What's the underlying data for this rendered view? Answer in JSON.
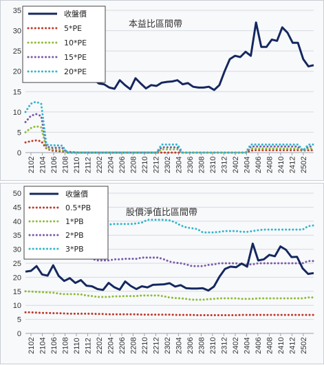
{
  "chart_data": [
    {
      "type": "line",
      "title": "本益比區間帶",
      "ylim": [
        0,
        35
      ],
      "yticks": [
        0,
        5,
        10,
        15,
        20,
        25,
        30,
        35
      ],
      "xtick_labels": [
        "2102",
        "2104",
        "2106",
        "2108",
        "2110",
        "2112",
        "2202",
        "2204",
        "2206",
        "2208",
        "2210",
        "2212",
        "2302",
        "2304",
        "2306",
        "2308",
        "2310",
        "2312",
        "2402",
        "2404",
        "2406",
        "2408",
        "2410",
        "2412",
        "2502"
      ],
      "grid": true,
      "legend_placement": "top-left",
      "series": [
        {
          "name": "收盤價",
          "color": "#14285f",
          "style": "solid",
          "values": [
            21.5,
            21,
            20.5,
            20,
            19.5,
            19,
            18.7,
            18.5,
            18.7,
            19.5,
            19,
            18.5,
            19,
            18,
            17,
            16.8,
            16,
            15.7,
            17.8,
            16.6,
            15.6,
            18.3,
            17,
            15.8,
            16.6,
            16.4,
            17.2,
            17.4,
            17.5,
            17.8,
            16.8,
            17.1,
            16.2,
            16,
            16,
            16.2,
            15.4,
            16.6,
            20,
            23,
            23.8,
            23.5,
            24.8,
            23.8,
            32,
            26,
            26,
            27.8,
            27.5,
            30.8,
            29.5,
            27,
            27,
            23,
            21.2,
            21.5
          ]
        },
        {
          "name": "5*PE",
          "color": "#c0392b",
          "style": "dotted",
          "values": [
            2.5,
            2.8,
            3,
            2.8,
            1,
            0.5,
            0.4,
            0.3,
            0.2,
            0.1,
            0,
            0,
            0,
            0,
            0,
            0,
            0,
            0,
            0,
            0,
            0,
            0,
            0,
            0,
            0,
            0,
            0,
            0,
            0,
            0,
            0,
            0,
            0,
            0,
            0,
            0,
            0,
            0,
            0,
            0,
            0,
            0,
            0,
            0.5,
            0.6,
            0.6,
            0.6,
            0.6,
            0.6,
            0.6,
            0.6,
            0.6,
            0.6,
            0.5,
            0.6,
            0.6
          ]
        },
        {
          "name": "10*PE",
          "color": "#8fbc3a",
          "style": "dotted",
          "values": [
            5,
            6,
            6.5,
            6.2,
            1,
            0.8,
            0.8,
            0.6,
            0,
            0,
            0,
            0,
            0,
            0,
            0,
            0,
            0,
            0,
            0,
            0,
            0,
            0,
            0,
            0,
            0,
            0,
            0.8,
            0.8,
            0.8,
            0.8,
            0,
            0,
            0,
            0,
            0,
            0,
            0,
            0,
            0,
            0,
            0,
            0,
            0,
            1,
            1,
            1,
            1,
            1,
            1,
            1,
            1,
            1,
            1,
            0.5,
            1,
            1
          ]
        },
        {
          "name": "15*PE",
          "color": "#7a5aa8",
          "style": "dotted",
          "values": [
            7.5,
            9,
            9.5,
            9,
            1.5,
            1.2,
            1.2,
            1.2,
            0,
            0,
            0,
            0,
            0,
            0,
            0,
            0,
            0,
            0,
            0,
            0,
            0,
            0,
            0,
            0,
            0,
            0,
            1.3,
            1.3,
            1.3,
            1.3,
            0,
            0,
            0,
            0,
            0,
            0,
            0,
            0,
            0,
            0,
            0,
            0,
            0,
            1.5,
            1.5,
            1.5,
            1.5,
            1.5,
            1.5,
            1.5,
            1.5,
            1.5,
            1.5,
            0.5,
            1.5,
            1.5
          ]
        },
        {
          "name": "20*PE",
          "color": "#35b6cc",
          "style": "dotted",
          "values": [
            10,
            12,
            12.5,
            12,
            2,
            1.8,
            1.8,
            1.7,
            0,
            0,
            0,
            0,
            0,
            0,
            0,
            0,
            0,
            0,
            0,
            0,
            0,
            0,
            0,
            0,
            0,
            0,
            2,
            2,
            2,
            2,
            0,
            0,
            0,
            0,
            0,
            0,
            0,
            0,
            0,
            0,
            0,
            0,
            0,
            2,
            2,
            2,
            2,
            2,
            2,
            2,
            2,
            2,
            2,
            0.5,
            2,
            2
          ]
        }
      ]
    },
    {
      "type": "line",
      "title": "股價淨值比區間帶",
      "ylim": [
        0,
        50
      ],
      "yticks": [
        0,
        5,
        10,
        15,
        20,
        25,
        30,
        35,
        40,
        45,
        50
      ],
      "xtick_labels": [
        "2102",
        "2104",
        "2106",
        "2108",
        "2110",
        "2112",
        "2202",
        "2204",
        "2206",
        "2208",
        "2210",
        "2212",
        "2302",
        "2304",
        "2306",
        "2308",
        "2310",
        "2312",
        "2402",
        "2404",
        "2406",
        "2408",
        "2410",
        "2412",
        "2502"
      ],
      "grid": true,
      "legend_placement": "top-left",
      "series": [
        {
          "name": "收盤價",
          "color": "#14285f",
          "style": "solid",
          "values": [
            22,
            22.3,
            24,
            21,
            20.6,
            24.3,
            20.5,
            18.7,
            19.7,
            18,
            19,
            17,
            16.8,
            15.8,
            15.5,
            18,
            16.5,
            15.6,
            18.5,
            16.9,
            15.8,
            16.8,
            16.4,
            17.3,
            17.4,
            17.5,
            17.9,
            16.7,
            17.2,
            16.1,
            16,
            16,
            16.1,
            15.3,
            16.7,
            20.2,
            23,
            23.8,
            23.6,
            24.9,
            23.8,
            32,
            26,
            26.4,
            28,
            27.5,
            31,
            29.8,
            27.2,
            27.3,
            23.2,
            21.2,
            21.5
          ]
        },
        {
          "name": "0.5*PB",
          "color": "#c0392b",
          "style": "dotted",
          "values": [
            7.5,
            7.5,
            7.4,
            7.3,
            7.3,
            7.2,
            7.2,
            7.1,
            7,
            7,
            7,
            7,
            7,
            6.9,
            6.9,
            6.8,
            6.8,
            6.8,
            6.8,
            6.8,
            6.8,
            6.7,
            6.7,
            6.7,
            6.7,
            6.7,
            6.7,
            6.6,
            6.6,
            6.6,
            6.6,
            6.5,
            6.5,
            6.5,
            6.5,
            6.5,
            6.5,
            6.5,
            6.5,
            6.6,
            6.6,
            6.6,
            6.6,
            6.6,
            6.6,
            6.6,
            6.6,
            6.6,
            6.6,
            6.6,
            6.6,
            6.6,
            6.6
          ]
        },
        {
          "name": "1*PB",
          "color": "#8fbc3a",
          "style": "dotted",
          "values": [
            15,
            14.9,
            14.8,
            14.7,
            14.6,
            14.5,
            14.2,
            14,
            14,
            14,
            13.9,
            13.5,
            13.3,
            13,
            13,
            13,
            13.2,
            13.2,
            13.3,
            13.3,
            13.3,
            13.5,
            13.5,
            13.5,
            13.5,
            13.2,
            12.8,
            12.6,
            12.5,
            12.3,
            12,
            12,
            12,
            12.2,
            12.3,
            12.5,
            12.5,
            12.5,
            12.5,
            12.3,
            12.3,
            12.3,
            12.5,
            12.5,
            12.5,
            12.5,
            12.5,
            12.5,
            12.5,
            12.5,
            12.5,
            12.8,
            12.8
          ]
        },
        {
          "name": "2*PB",
          "color": "#7a5aa8",
          "style": "dotted",
          "values": [
            30,
            29.8,
            29.6,
            29.4,
            29.2,
            29,
            28.5,
            28,
            28,
            28,
            27.8,
            27,
            26.6,
            26,
            26,
            26,
            26.4,
            26.4,
            26.6,
            26.6,
            26.6,
            27,
            27,
            27,
            27,
            26.4,
            25.6,
            25.2,
            25,
            24.6,
            24,
            24,
            24,
            24.4,
            24.6,
            25,
            25,
            25,
            25,
            24.6,
            24.6,
            24.6,
            25,
            25,
            25,
            25,
            25,
            25,
            25,
            25,
            25,
            25.8,
            25.8
          ]
        },
        {
          "name": "3*PB",
          "color": "#35b6cc",
          "style": "dotted",
          "values": [
            45,
            44.5,
            44,
            43.5,
            43,
            42.5,
            41.5,
            41,
            40.5,
            40,
            39.5,
            39,
            38.8,
            38.6,
            38.8,
            38.8,
            39,
            39,
            39,
            39,
            39.2,
            39.5,
            40.5,
            40.5,
            40.5,
            40.5,
            40.3,
            39.6,
            38.5,
            37.8,
            37.5,
            37.2,
            36,
            36,
            36,
            36.2,
            36.5,
            36.5,
            36.5,
            36.2,
            36.2,
            36.5,
            36.8,
            37,
            37,
            37,
            37,
            37,
            37,
            37,
            37,
            38.2,
            38.5
          ]
        }
      ]
    }
  ]
}
